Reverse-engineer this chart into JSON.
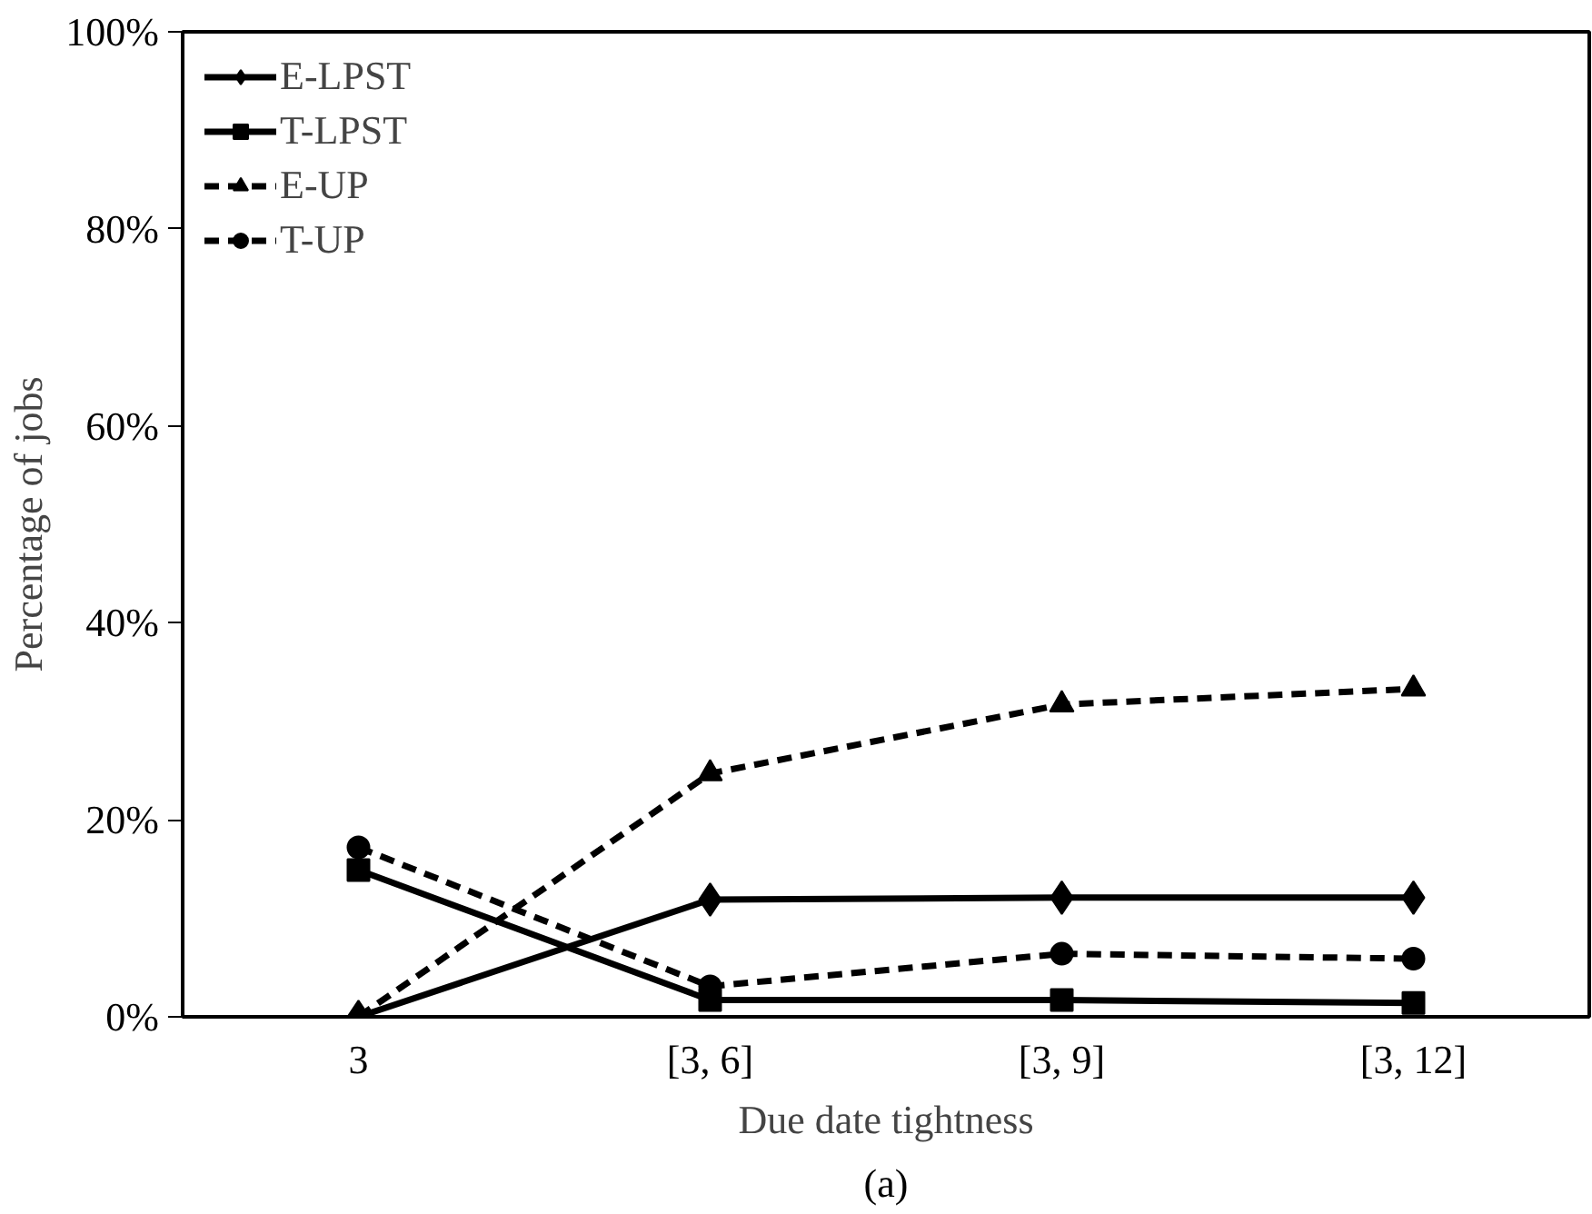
{
  "chart_data": {
    "type": "line",
    "xlabel": "Due date tightness",
    "ylabel": "Percentage of jobs",
    "categories": [
      "3",
      "[3, 6]",
      "[3, 9]",
      "[3, 12]"
    ],
    "ylim": [
      0,
      100
    ],
    "yticks": [
      {
        "value": 0,
        "label": "0%"
      },
      {
        "value": 20,
        "label": "20%"
      },
      {
        "value": 40,
        "label": "40%"
      },
      {
        "value": 60,
        "label": "60%"
      },
      {
        "value": 80,
        "label": "80%"
      },
      {
        "value": 100,
        "label": "100%"
      }
    ],
    "grid": false,
    "legend": "top left",
    "series": [
      {
        "name": "E-LPST",
        "color": "#000000",
        "marker": "diamond",
        "line_style": "solid",
        "values": [
          0,
          11.9,
          12.1,
          12.1
        ]
      },
      {
        "name": "T-LPST",
        "color": "#000000",
        "marker": "square",
        "line_style": "solid",
        "values": [
          14.9,
          1.7,
          1.7,
          1.4
        ]
      },
      {
        "name": "E-UP",
        "color": "#000000",
        "marker": "triangle",
        "line_style": "dashed",
        "values": [
          0,
          24.7,
          31.7,
          33.3
        ]
      },
      {
        "name": "T-UP",
        "color": "#000000",
        "marker": "circle",
        "line_style": "dashed",
        "values": [
          17.2,
          3.1,
          6.4,
          5.9
        ]
      }
    ],
    "annotations": [
      "(a)"
    ]
  }
}
